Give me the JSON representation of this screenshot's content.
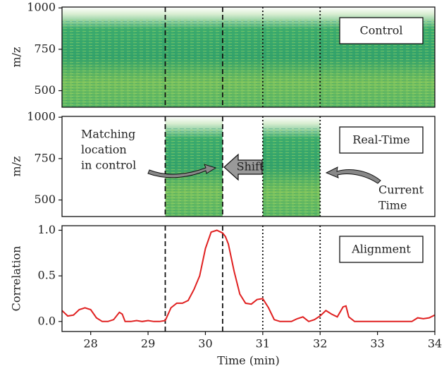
{
  "chart_data": [
    {
      "type": "heatmap",
      "ylabel": "m/z",
      "label": "Control",
      "xlim": [
        27.5,
        34
      ],
      "ylim": [
        400,
        1005
      ],
      "yticks": [
        500,
        750,
        1000
      ],
      "regions": [
        [
          27.5,
          34
        ]
      ],
      "vlines": [
        {
          "x": 29.3,
          "style": "dashed"
        },
        {
          "x": 30.3,
          "style": "dashed"
        },
        {
          "x": 31,
          "style": "dotted"
        },
        {
          "x": 32,
          "style": "dotted"
        }
      ]
    },
    {
      "type": "heatmap",
      "ylabel": "m/z",
      "label": "Real-Time",
      "xlim": [
        27.5,
        34
      ],
      "ylim": [
        400,
        1005
      ],
      "yticks": [
        500,
        750,
        1000
      ],
      "regions": [
        [
          29.3,
          30.3
        ],
        [
          31,
          32
        ]
      ],
      "vlines": [
        {
          "x": 29.3,
          "style": "dashed"
        },
        {
          "x": 30.3,
          "style": "dashed"
        },
        {
          "x": 31,
          "style": "dotted"
        },
        {
          "x": 32,
          "style": "dotted"
        }
      ],
      "annotations": [
        [
          "Matching",
          "location",
          "in control"
        ],
        [
          "Shift"
        ],
        [
          "Current",
          "Time"
        ]
      ]
    },
    {
      "type": "line",
      "ylabel": "Correlation",
      "label": "Alignment",
      "xlabel": "Time (min)",
      "xlim": [
        27.5,
        34
      ],
      "xticks": [
        28,
        29,
        30,
        31,
        32,
        33,
        34
      ],
      "ylim": [
        -0.11,
        1.05
      ],
      "yticks": [
        {
          "value": 0,
          "label": "0.0"
        },
        0.5,
        {
          "value": 1,
          "label": "1.0"
        }
      ],
      "color": "#e02020",
      "vlines": [
        {
          "x": 29.3,
          "style": "dashed"
        },
        {
          "x": 30.3,
          "style": "dashed"
        },
        {
          "x": 31,
          "style": "dotted"
        },
        {
          "x": 32,
          "style": "dotted"
        }
      ],
      "x": [
        27.5,
        27.6,
        27.7,
        27.8,
        27.9,
        28.0,
        28.1,
        28.2,
        28.3,
        28.4,
        28.5,
        28.55,
        28.6,
        28.7,
        28.8,
        28.9,
        29.0,
        29.1,
        29.2,
        29.3,
        29.4,
        29.5,
        29.6,
        29.7,
        29.8,
        29.9,
        30.0,
        30.1,
        30.2,
        30.3,
        30.35,
        30.4,
        30.5,
        30.6,
        30.7,
        30.8,
        30.9,
        31.0,
        31.1,
        31.2,
        31.3,
        31.4,
        31.5,
        31.6,
        31.7,
        31.8,
        31.9,
        32.0,
        32.1,
        32.2,
        32.3,
        32.4,
        32.45,
        32.5,
        32.6,
        32.8,
        33.0,
        33.2,
        33.4,
        33.6,
        33.7,
        33.8,
        33.9,
        34.0
      ],
      "values": [
        0.12,
        0.06,
        0.07,
        0.13,
        0.15,
        0.13,
        0.04,
        0.0,
        0.0,
        0.02,
        0.1,
        0.08,
        0.0,
        0.0,
        0.01,
        0.0,
        0.01,
        0.0,
        0.0,
        0.01,
        0.15,
        0.2,
        0.2,
        0.23,
        0.35,
        0.5,
        0.8,
        0.98,
        1.0,
        0.97,
        0.93,
        0.85,
        0.55,
        0.3,
        0.2,
        0.19,
        0.24,
        0.25,
        0.15,
        0.02,
        0.0,
        0.0,
        0.0,
        0.03,
        0.05,
        0.0,
        0.02,
        0.06,
        0.12,
        0.08,
        0.05,
        0.16,
        0.17,
        0.05,
        0.0,
        0.0,
        0.0,
        0.0,
        0.0,
        0.0,
        0.04,
        0.03,
        0.04,
        0.07
      ]
    }
  ]
}
